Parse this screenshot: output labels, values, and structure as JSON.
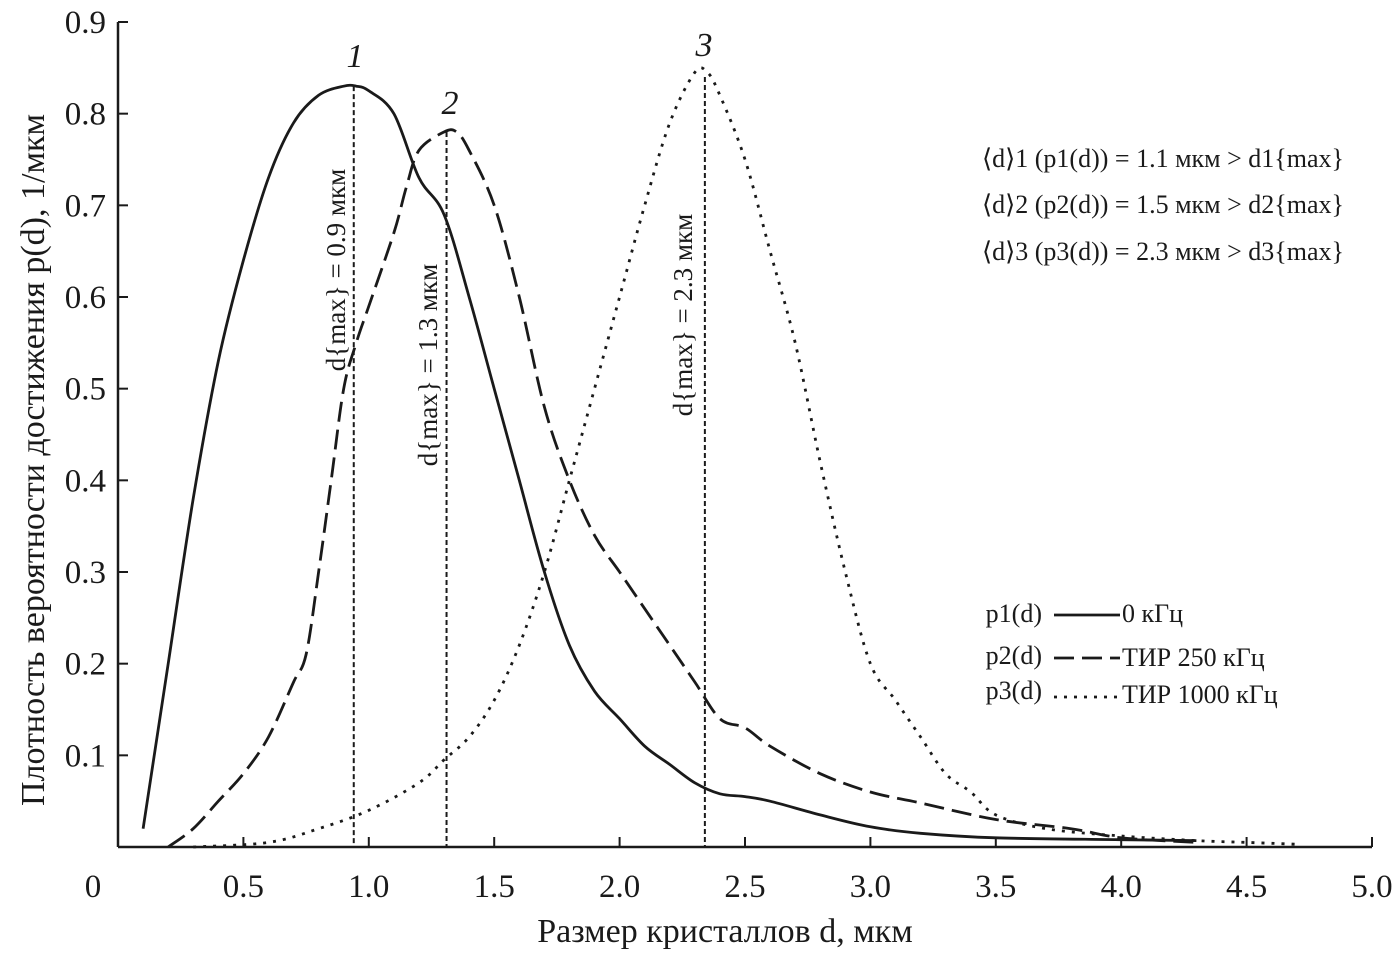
{
  "chart_data": {
    "type": "line",
    "xlabel": "Размер кристаллов d, мкм",
    "ylabel": "Плотность вероятности достижения p(d), 1/мкм",
    "xlim": [
      0,
      5.0
    ],
    "ylim": [
      0,
      0.9
    ],
    "x_ticks": [
      "0",
      "0.5",
      "1.0",
      "1.5",
      "2.0",
      "2.5",
      "3.0",
      "3.5",
      "4.0",
      "4.5",
      "5.0"
    ],
    "y_ticks": [
      "0.1",
      "0.2",
      "0.3",
      "0.4",
      "0.5",
      "0.6",
      "0.7",
      "0.8",
      "0.9"
    ],
    "grid": false,
    "legend_position": "right",
    "series": [
      {
        "name": "0 кГц",
        "legend_label": "p1(d)",
        "curve_number": "1",
        "style": "solid",
        "points": [
          [
            0.1,
            0.02
          ],
          [
            0.2,
            0.2
          ],
          [
            0.3,
            0.38
          ],
          [
            0.4,
            0.53
          ],
          [
            0.5,
            0.64
          ],
          [
            0.6,
            0.73
          ],
          [
            0.7,
            0.79
          ],
          [
            0.8,
            0.82
          ],
          [
            0.9,
            0.83
          ],
          [
            0.95,
            0.83
          ],
          [
            1.0,
            0.825
          ],
          [
            1.1,
            0.8
          ],
          [
            1.2,
            0.73
          ],
          [
            1.3,
            0.69
          ],
          [
            1.4,
            0.6
          ],
          [
            1.5,
            0.5
          ],
          [
            1.6,
            0.4
          ],
          [
            1.7,
            0.3
          ],
          [
            1.8,
            0.22
          ],
          [
            1.9,
            0.17
          ],
          [
            2.0,
            0.14
          ],
          [
            2.1,
            0.11
          ],
          [
            2.2,
            0.09
          ],
          [
            2.3,
            0.07
          ],
          [
            2.4,
            0.058
          ],
          [
            2.5,
            0.055
          ],
          [
            2.6,
            0.05
          ],
          [
            2.8,
            0.035
          ],
          [
            3.0,
            0.022
          ],
          [
            3.2,
            0.015
          ],
          [
            3.5,
            0.01
          ],
          [
            4.0,
            0.008
          ],
          [
            4.3,
            0.007
          ]
        ]
      },
      {
        "name": "ТИР 250 кГц",
        "legend_label": "p2(d)",
        "curve_number": "2",
        "style": "dashed",
        "points": [
          [
            0.2,
            0.0
          ],
          [
            0.3,
            0.02
          ],
          [
            0.4,
            0.05
          ],
          [
            0.5,
            0.08
          ],
          [
            0.6,
            0.12
          ],
          [
            0.7,
            0.18
          ],
          [
            0.75,
            0.21
          ],
          [
            0.8,
            0.3
          ],
          [
            0.85,
            0.4
          ],
          [
            0.9,
            0.5
          ],
          [
            0.95,
            0.55
          ],
          [
            1.0,
            0.59
          ],
          [
            1.1,
            0.67
          ],
          [
            1.15,
            0.72
          ],
          [
            1.2,
            0.76
          ],
          [
            1.3,
            0.78
          ],
          [
            1.35,
            0.78
          ],
          [
            1.4,
            0.76
          ],
          [
            1.5,
            0.7
          ],
          [
            1.6,
            0.6
          ],
          [
            1.7,
            0.48
          ],
          [
            1.8,
            0.4
          ],
          [
            1.9,
            0.34
          ],
          [
            2.0,
            0.3
          ],
          [
            2.1,
            0.26
          ],
          [
            2.2,
            0.22
          ],
          [
            2.3,
            0.18
          ],
          [
            2.4,
            0.14
          ],
          [
            2.5,
            0.13
          ],
          [
            2.6,
            0.11
          ],
          [
            2.8,
            0.08
          ],
          [
            3.0,
            0.06
          ],
          [
            3.2,
            0.048
          ],
          [
            3.5,
            0.03
          ],
          [
            3.8,
            0.02
          ],
          [
            4.0,
            0.01
          ],
          [
            4.3,
            0.005
          ]
        ]
      },
      {
        "name": "ТИР 1000 кГц",
        "legend_label": "p3(d)",
        "curve_number": "3",
        "style": "dotted",
        "points": [
          [
            0.3,
            0.0
          ],
          [
            0.6,
            0.005
          ],
          [
            0.8,
            0.02
          ],
          [
            1.0,
            0.04
          ],
          [
            1.2,
            0.07
          ],
          [
            1.3,
            0.095
          ],
          [
            1.4,
            0.12
          ],
          [
            1.5,
            0.16
          ],
          [
            1.6,
            0.22
          ],
          [
            1.7,
            0.3
          ],
          [
            1.8,
            0.4
          ],
          [
            1.9,
            0.5
          ],
          [
            2.0,
            0.6
          ],
          [
            2.1,
            0.7
          ],
          [
            2.2,
            0.79
          ],
          [
            2.3,
            0.845
          ],
          [
            2.35,
            0.845
          ],
          [
            2.4,
            0.82
          ],
          [
            2.5,
            0.75
          ],
          [
            2.6,
            0.65
          ],
          [
            2.7,
            0.55
          ],
          [
            2.8,
            0.42
          ],
          [
            2.9,
            0.3
          ],
          [
            3.0,
            0.2
          ],
          [
            3.1,
            0.16
          ],
          [
            3.2,
            0.12
          ],
          [
            3.3,
            0.08
          ],
          [
            3.4,
            0.06
          ],
          [
            3.5,
            0.035
          ],
          [
            3.7,
            0.02
          ],
          [
            4.0,
            0.012
          ],
          [
            4.3,
            0.007
          ],
          [
            4.5,
            0.005
          ],
          [
            4.7,
            0.003
          ]
        ]
      }
    ],
    "markers": [
      {
        "x": 0.94,
        "y_top": 0.83,
        "label": "d{max} = 0.9 мкм"
      },
      {
        "x": 1.31,
        "y_top": 0.78,
        "label": "d{max} = 1.3 мкм"
      },
      {
        "x": 2.34,
        "y_top": 0.84,
        "label": "d{max} = 2.3 мкм"
      }
    ],
    "annotations": [
      "⟨d⟩1 (p1(d)) = 1.1 мкм > d1{max}",
      "⟨d⟩2 (p2(d)) = 1.5 мкм > d2{max}",
      "⟨d⟩3 (p3(d)) = 2.3 мкм > d3{max}"
    ]
  }
}
